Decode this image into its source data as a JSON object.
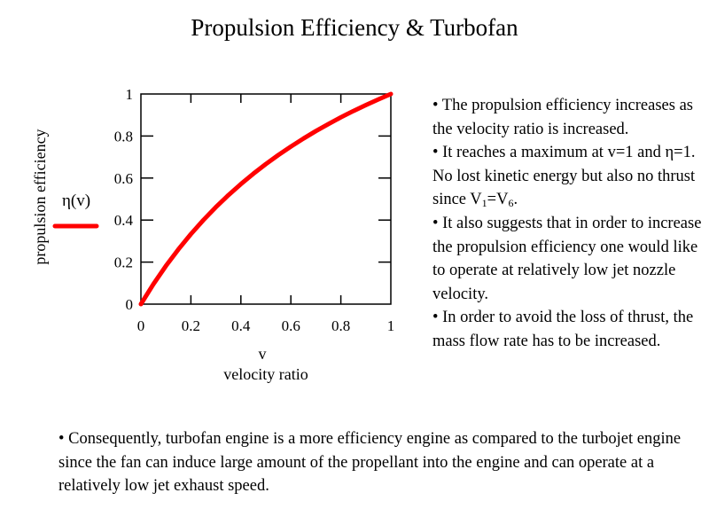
{
  "title": "Propulsion Efficiency & Turbofan",
  "chart_data": {
    "type": "line",
    "ylabel": "propulsion efficiency",
    "xlabel_line1": "v",
    "xlabel_line2": "velocity ratio",
    "xlim": [
      0,
      1
    ],
    "ylim": [
      0,
      1
    ],
    "xticks": [
      "0",
      "0.2",
      "0.4",
      "0.6",
      "0.8",
      "1"
    ],
    "yticks": [
      "0",
      "0.2",
      "0.4",
      "0.6",
      "0.8",
      "1"
    ],
    "legend": {
      "label": "η(v)",
      "position": "left"
    },
    "grid": false,
    "color": "#ff0000",
    "series": [
      {
        "name": "η(v)",
        "x": [
          0,
          0.05,
          0.1,
          0.15,
          0.2,
          0.25,
          0.3,
          0.35,
          0.4,
          0.45,
          0.5,
          0.55,
          0.6,
          0.65,
          0.7,
          0.75,
          0.8,
          0.85,
          0.9,
          0.95,
          1
        ],
        "y": [
          0,
          0.0952,
          0.1818,
          0.2609,
          0.3333,
          0.4,
          0.4615,
          0.5185,
          0.5714,
          0.6207,
          0.6667,
          0.7097,
          0.75,
          0.7879,
          0.8235,
          0.8571,
          0.8889,
          0.9189,
          0.9474,
          0.9744,
          1
        ]
      }
    ]
  },
  "bullets": [
    {
      "text": "• The propulsion efficiency increases as the velocity ratio is increased."
    },
    {
      "pre": "• It reaches a maximum at v=1 and ",
      "eta": "η",
      "mid": "=1.  No lost kinetic energy but also no thrust since V",
      "sub1": "1",
      "eq": "=V",
      "sub2": "6",
      "post": "."
    },
    {
      "text": "• It also suggests that in order to increase the propulsion efficiency one would like to operate at relatively low jet nozzle velocity."
    },
    {
      "text": "• In order to avoid the loss of thrust, the mass flow rate has to be increased."
    }
  ],
  "bottom_text": "• Consequently, turbofan engine is a more efficiency engine as compared to the turbojet engine since the fan can induce large amount of the propellant into the engine and can operate at a relatively low jet exhaust speed."
}
